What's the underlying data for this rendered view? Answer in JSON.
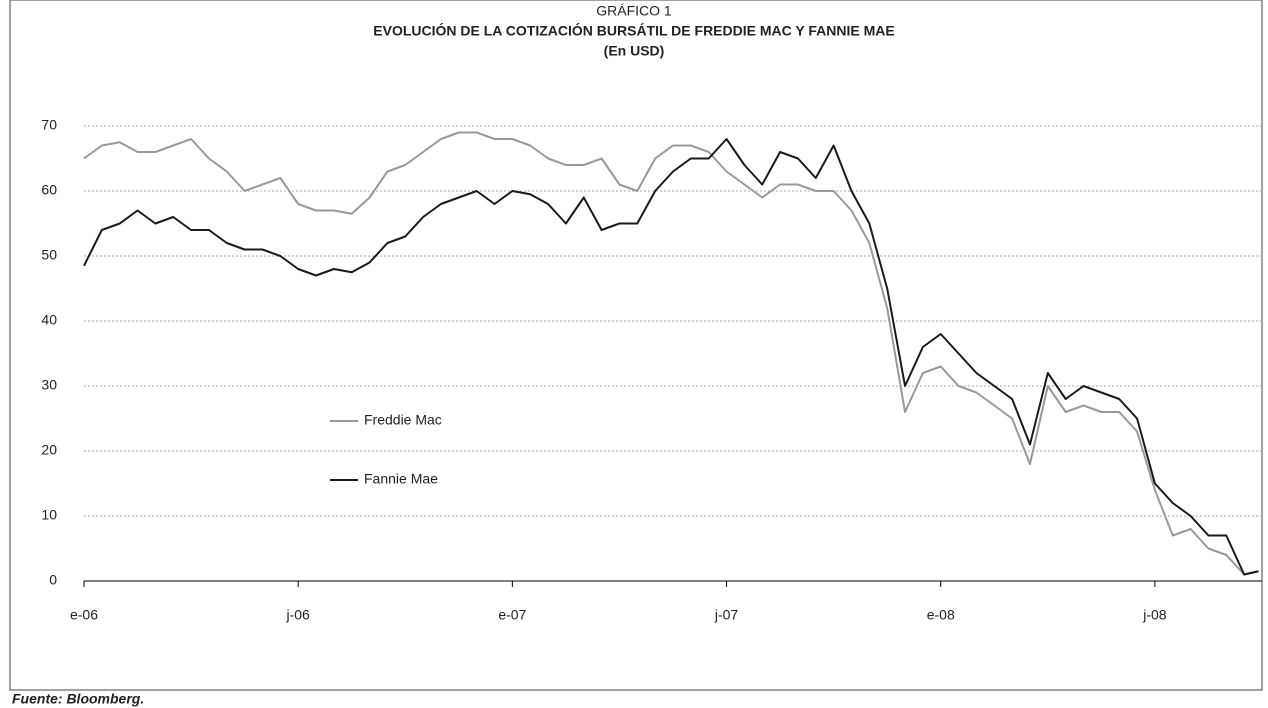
{
  "chart_data": {
    "type": "line",
    "supertitle": "GRÁFICO 1",
    "title": "EVOLUCIÓN DE LA COTIZACIÓN BURSÁTIL DE FREDDIE MAC Y FANNIE MAE",
    "subtitle": "(En USD)",
    "source": "Fuente: Bloomberg.",
    "x": [
      0,
      0.5,
      1,
      1.5,
      2,
      2.5,
      3,
      3.5,
      4,
      4.5,
      5,
      5.5,
      6,
      6.5,
      7,
      7.5,
      8,
      8.5,
      9,
      9.5,
      10,
      10.5,
      11,
      11.5,
      12,
      12.5,
      13,
      13.5,
      14,
      14.5,
      15,
      15.5,
      16,
      16.5,
      17,
      17.5,
      18,
      18.5,
      19,
      19.5,
      20,
      20.5,
      21,
      21.5,
      22,
      22.5,
      23,
      23.5,
      24,
      24.5,
      25,
      25.5,
      26,
      26.5,
      27,
      27.5,
      28,
      28.5,
      29,
      29.5,
      30,
      30.5,
      31,
      31.5,
      32,
      32.5,
      32.9
    ],
    "series": [
      {
        "name": "Freddie Mac",
        "color": "#999999",
        "values": [
          65,
          67,
          67.5,
          66,
          66,
          67,
          68,
          65,
          63,
          60,
          61,
          62,
          58,
          57,
          57,
          56.5,
          59,
          63,
          64,
          66,
          68,
          69,
          69,
          68,
          68,
          67,
          65,
          64,
          64,
          65,
          61,
          60,
          65,
          67,
          67,
          66,
          63,
          61,
          59,
          61,
          61,
          60,
          60,
          57,
          52,
          42,
          26,
          32,
          33,
          30,
          29,
          27,
          25,
          18,
          30,
          26,
          27,
          26,
          26,
          23,
          14,
          7,
          8,
          5,
          4,
          1,
          1.5
        ]
      },
      {
        "name": "Fannie Mae",
        "color": "#1a1a1a",
        "values": [
          48.5,
          54,
          55,
          57,
          55,
          56,
          54,
          54,
          52,
          51,
          51,
          50,
          48,
          47,
          48,
          47.5,
          49,
          52,
          53,
          56,
          58,
          59,
          60,
          58,
          60,
          59.5,
          58,
          55,
          59,
          54,
          55,
          55,
          60,
          63,
          65,
          65,
          68,
          64,
          61,
          66,
          65,
          62,
          67,
          60,
          55,
          45,
          30,
          36,
          38,
          35,
          32,
          30,
          28,
          21,
          32,
          28,
          30,
          29,
          28,
          25,
          15,
          12,
          10,
          7,
          7,
          1,
          1.5
        ]
      }
    ],
    "xlim": [
      0,
      33
    ],
    "xticks": [
      {
        "value": 0,
        "label": "e-06"
      },
      {
        "value": 6,
        "label": "j-06"
      },
      {
        "value": 12,
        "label": "e-07"
      },
      {
        "value": 18,
        "label": "j-07"
      },
      {
        "value": 24,
        "label": "e-08"
      },
      {
        "value": 30,
        "label": "j-08"
      }
    ],
    "ylim": [
      0,
      70
    ],
    "yticks": [
      0,
      10,
      20,
      30,
      40,
      50,
      60,
      70
    ],
    "grid": true
  }
}
